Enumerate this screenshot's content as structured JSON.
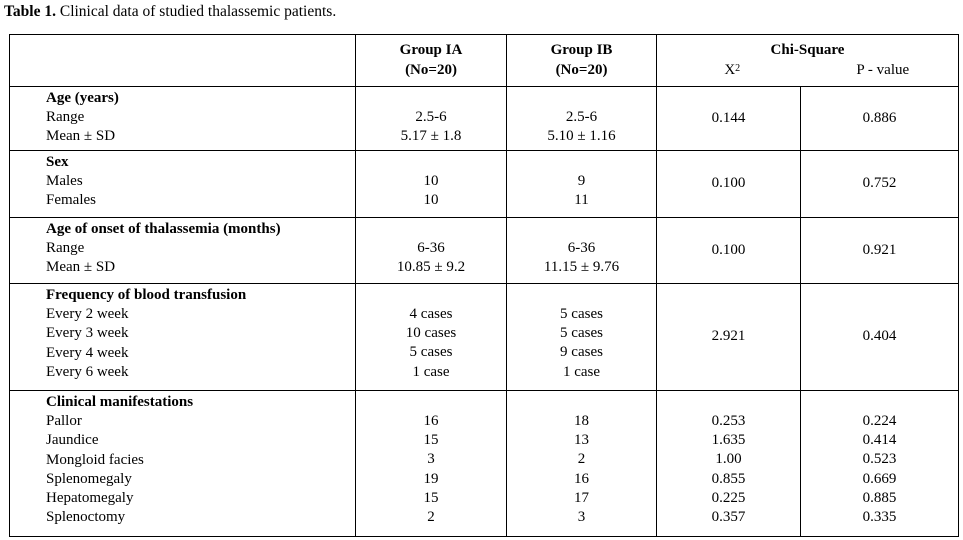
{
  "caption": {
    "label": "Table 1.",
    "text": " Clinical data of studied thalassemic patients."
  },
  "header": {
    "group_ia": [
      "Group IA",
      "(No=20)"
    ],
    "group_ib": [
      "Group IB",
      "(No=20)"
    ],
    "chi_square": "Chi-Square",
    "x2_base": "X",
    "x2_sup": "2",
    "p_value": "P - value"
  },
  "sections": [
    {
      "title": "Age (years)",
      "rows": [
        "Range",
        "Mean ± SD"
      ],
      "group_ia": [
        "2.5-6",
        "5.17 ± 1.8"
      ],
      "group_ib": [
        "2.5-6",
        "5.10 ± 1.16"
      ],
      "x2": [
        "0.144"
      ],
      "p": [
        "0.886"
      ]
    },
    {
      "title": "Sex",
      "rows": [
        "Males",
        "Females"
      ],
      "group_ia": [
        "10",
        "10"
      ],
      "group_ib": [
        "9",
        "11"
      ],
      "x2": [
        "0.100"
      ],
      "p": [
        "0.752"
      ]
    },
    {
      "title": "Age of onset of thalassemia (months)",
      "rows": [
        "Range",
        "Mean ± SD"
      ],
      "group_ia": [
        "6-36",
        "10.85 ± 9.2"
      ],
      "group_ib": [
        "6-36",
        "11.15 ± 9.76"
      ],
      "x2": [
        "0.100"
      ],
      "p": [
        "0.921"
      ]
    },
    {
      "title": "Frequency of blood transfusion",
      "rows": [
        "Every 2 week",
        "Every 3 week",
        "Every 4 week",
        "Every 6 week"
      ],
      "group_ia": [
        "4 cases",
        "10 cases",
        "5 cases",
        "1 case"
      ],
      "group_ib": [
        "5 cases",
        "5 cases",
        "9 cases",
        "1 case"
      ],
      "x2": [
        "2.921"
      ],
      "p": [
        "0.404"
      ]
    },
    {
      "title": "Clinical manifestations",
      "rows": [
        "Pallor",
        "Jaundice",
        "Mongloid facies",
        "Splenomegaly",
        "Hepatomegaly",
        "Splenoctomy"
      ],
      "group_ia": [
        "16",
        "15",
        "3",
        "19",
        "15",
        "2"
      ],
      "group_ib": [
        "18",
        "13",
        "2",
        "16",
        "17",
        "3"
      ],
      "x2": [
        "0.253",
        "1.635",
        "1.00",
        "0.855",
        "0.225",
        "0.357"
      ],
      "p": [
        "0.224",
        "0.414",
        "0.523",
        "0.669",
        "0.885",
        "0.335"
      ]
    }
  ]
}
